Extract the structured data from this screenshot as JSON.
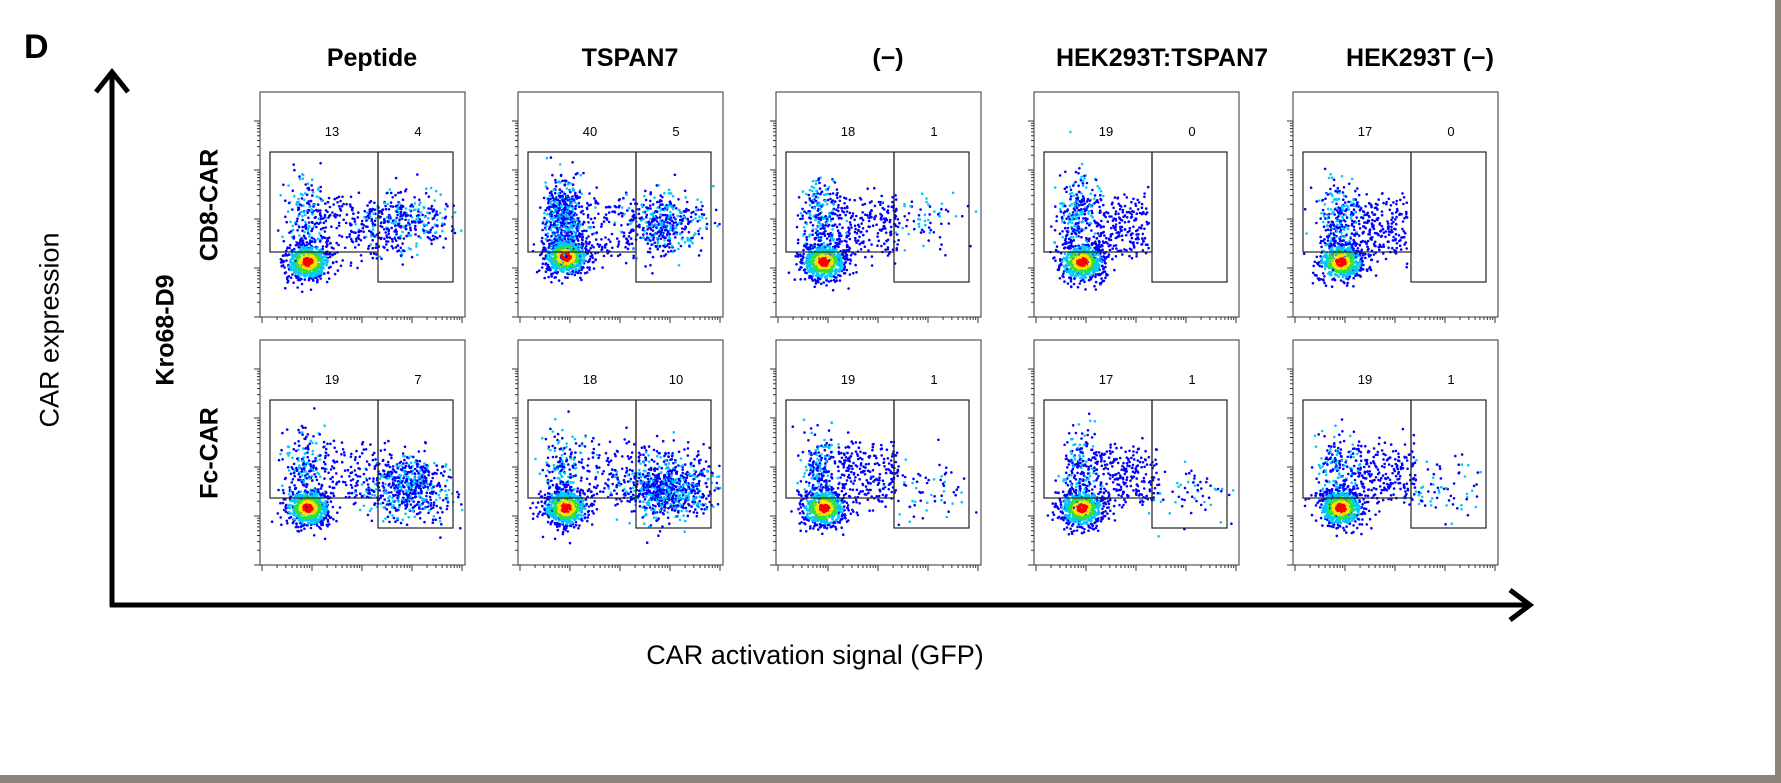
{
  "panel_letter": "D",
  "chart_data": {
    "type": "scatter",
    "subtype": "flow-cytometry-pseudocolor-density",
    "xlabel": "CAR activation signal (GFP)",
    "ylabel": "CAR expression",
    "group_label": "Kro68-D9",
    "columns": [
      "Peptide",
      "TSPAN7",
      "(−)",
      "HEK293T:TSPAN7",
      "HEK293T (−)"
    ],
    "rows": [
      "CD8-CAR",
      "Fc-CAR"
    ],
    "x_scale": "log",
    "y_scale": "log",
    "gates": [
      "CAR+ GFP− (left)",
      "CAR+ GFP+ (right)"
    ],
    "gate_percentages": [
      [
        [
          13,
          4
        ],
        [
          40,
          5
        ],
        [
          18,
          1
        ],
        [
          19,
          0
        ],
        [
          17,
          0
        ]
      ],
      [
        [
          19,
          7
        ],
        [
          18,
          10
        ],
        [
          19,
          1
        ],
        [
          17,
          1
        ],
        [
          19,
          1
        ]
      ]
    ],
    "colormap": [
      "#0000ff",
      "#00c8ff",
      "#30e040",
      "#ffe000",
      "#ff0000"
    ]
  }
}
